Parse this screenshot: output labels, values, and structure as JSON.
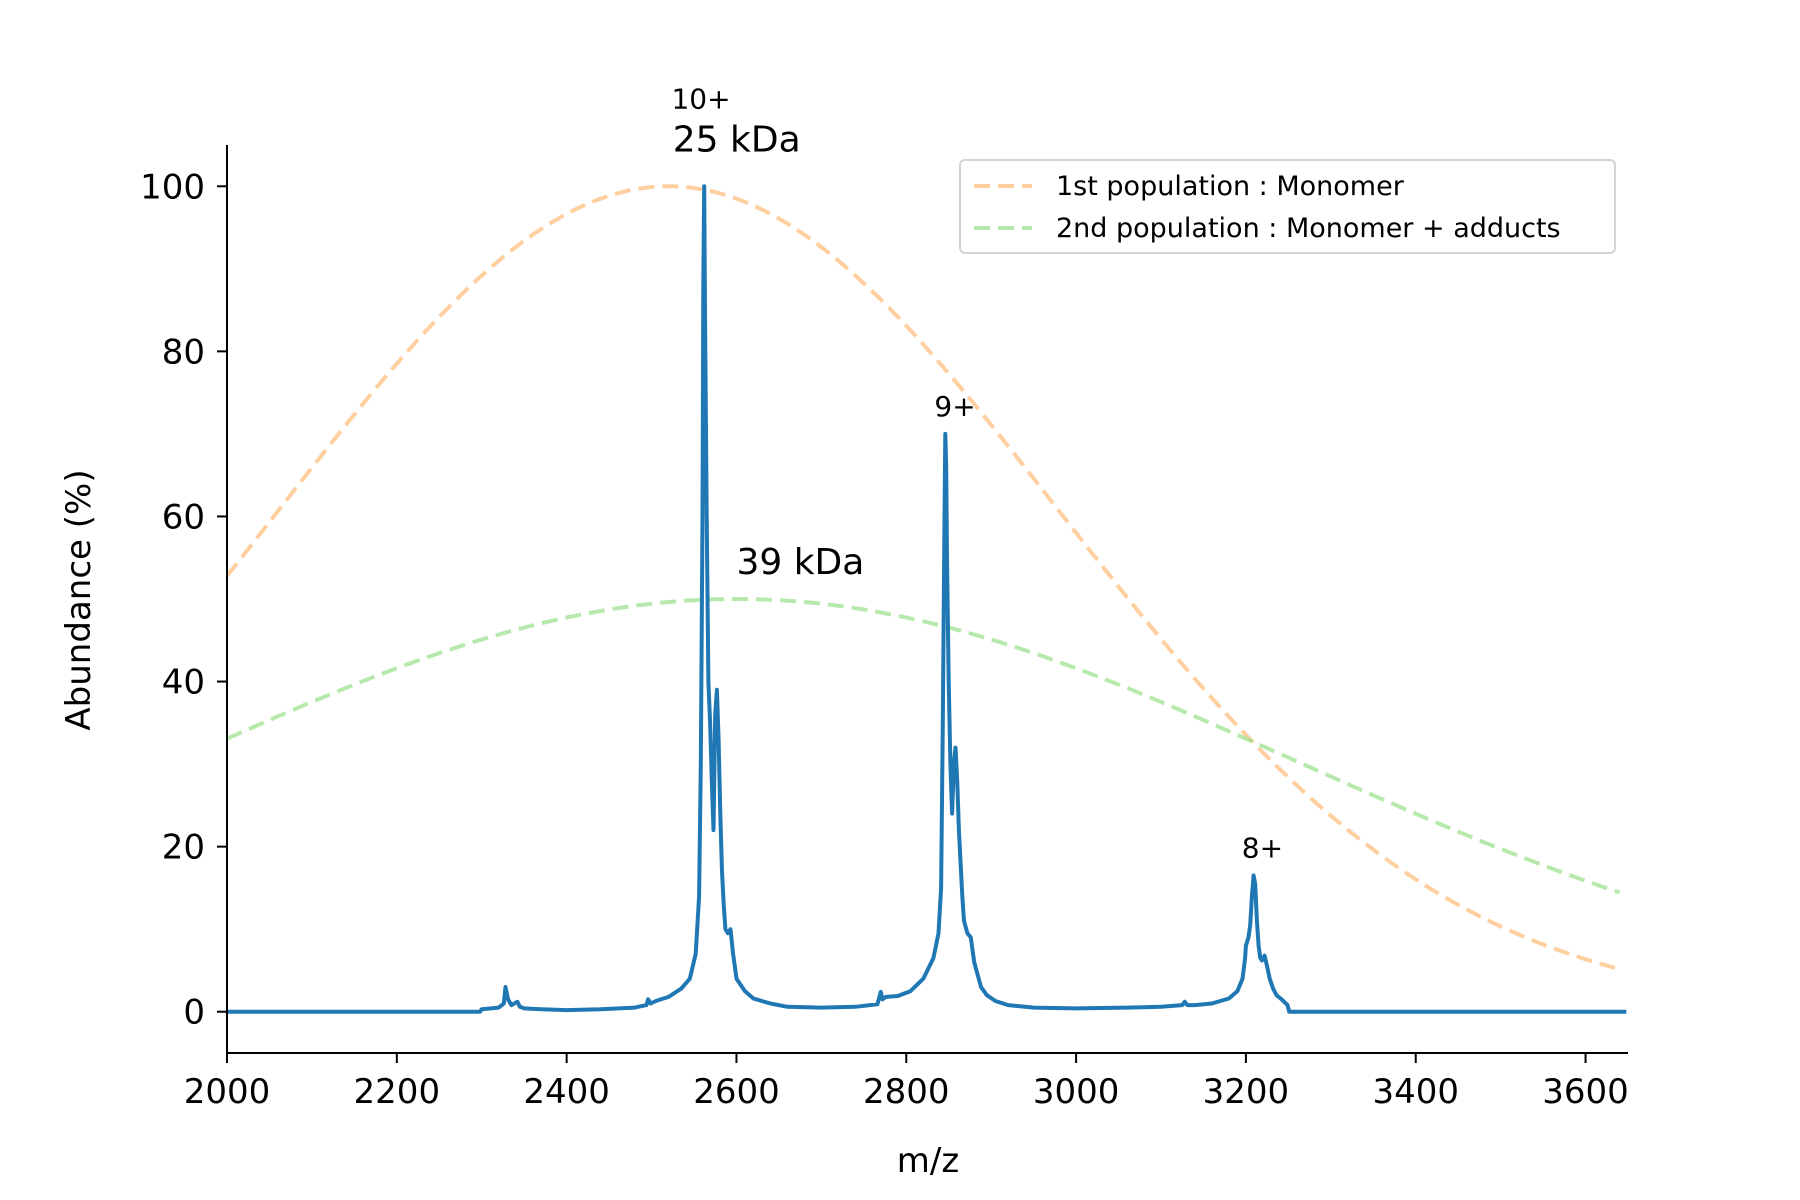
{
  "chart_data": {
    "type": "line",
    "xlabel": "m/z",
    "ylabel": "Abundance (%)",
    "xlim": [
      2000,
      3650
    ],
    "ylim": [
      -5,
      105
    ],
    "x_ticks": [
      2000,
      2200,
      2400,
      2600,
      2800,
      3000,
      3200,
      3400,
      3600
    ],
    "y_ticks": [
      0,
      20,
      40,
      60,
      80,
      100
    ],
    "grid": false,
    "legend_position": "top-right",
    "legend": [
      {
        "label": "1st population : Monomer",
        "color": "#ffbb78",
        "style": "dashed"
      },
      {
        "label": "2nd population : Monomer + adducts",
        "color": "#98df8a",
        "style": "dashed"
      }
    ],
    "annotations": {
      "charge_states": [
        {
          "text": "10+",
          "x": 2563,
          "y": 100
        },
        {
          "text": "9+",
          "x": 2848,
          "y": 70
        },
        {
          "text": "8+",
          "x": 3210,
          "y": 16.5
        }
      ],
      "masses": [
        {
          "text": "25 kDa",
          "x": 2525,
          "y": 100
        },
        {
          "text": "39 kDa",
          "x": 2600,
          "y": 50
        }
      ]
    },
    "series": [
      {
        "name": "1st population : Monomer",
        "kind": "gaussian",
        "center": 2520,
        "amplitude": 100,
        "sigma": 460,
        "color": "#ffbb78",
        "dashed": true,
        "x_range": [
          2000,
          3640
        ]
      },
      {
        "name": "2nd population : Monomer + adducts",
        "kind": "gaussian",
        "center": 2600,
        "amplitude": 50,
        "sigma": 660,
        "color": "#98df8a",
        "dashed": true,
        "x_range": [
          2000,
          3640
        ]
      },
      {
        "kind": "spectrum",
        "color": "#1f77b4",
        "x": [
          2000,
          2298,
          2300,
          2320,
          2326,
          2328,
          2331,
          2335,
          2342,
          2345,
          2350,
          2370,
          2400,
          2440,
          2480,
          2494,
          2496,
          2499,
          2505,
          2520,
          2535,
          2545,
          2552,
          2556,
          2558,
          2560,
          2561,
          2562,
          2563,
          2565,
          2567,
          2569,
          2571,
          2573,
          2575,
          2577,
          2579,
          2581,
          2583,
          2585,
          2587,
          2590,
          2593,
          2596,
          2600,
          2610,
          2620,
          2640,
          2660,
          2700,
          2740,
          2766,
          2770,
          2772,
          2776,
          2790,
          2805,
          2820,
          2832,
          2838,
          2841,
          2843,
          2845,
          2846,
          2847,
          2848,
          2850,
          2852,
          2854,
          2856,
          2858,
          2860,
          2862,
          2864,
          2866,
          2868,
          2872,
          2876,
          2880,
          2884,
          2888,
          2895,
          2905,
          2920,
          2950,
          3000,
          3060,
          3100,
          3125,
          3128,
          3131,
          3140,
          3160,
          3180,
          3190,
          3196,
          3199,
          3200,
          3203,
          3205,
          3207,
          3209,
          3211,
          3213,
          3215,
          3217,
          3219,
          3222,
          3225,
          3228,
          3232,
          3236,
          3242,
          3249,
          3251,
          3252,
          3254,
          3300,
          3400,
          3500,
          3600,
          3648
        ],
        "y": [
          0,
          0,
          0.3,
          0.5,
          1.0,
          3.0,
          1.5,
          0.8,
          1.2,
          0.6,
          0.4,
          0.3,
          0.2,
          0.3,
          0.5,
          0.8,
          1.5,
          1.0,
          1.3,
          1.8,
          2.8,
          4.0,
          7.0,
          14.0,
          30.0,
          60.0,
          88.0,
          100.0,
          85.0,
          60.0,
          40.0,
          35.0,
          28.0,
          22.0,
          36.0,
          39.0,
          33.0,
          24.0,
          17.0,
          13.0,
          10.0,
          9.5,
          10.0,
          7.0,
          4.0,
          2.5,
          1.6,
          1.0,
          0.6,
          0.5,
          0.6,
          0.9,
          2.4,
          1.5,
          1.8,
          1.9,
          2.5,
          4.0,
          6.5,
          9.5,
          15.0,
          35.0,
          60.0,
          70.0,
          66.0,
          55.0,
          40.0,
          30.0,
          24.0,
          30.0,
          32.0,
          28.0,
          22.0,
          18.0,
          14.0,
          11.0,
          9.5,
          9.0,
          6.0,
          4.5,
          3.0,
          2.0,
          1.3,
          0.8,
          0.5,
          0.4,
          0.5,
          0.6,
          0.8,
          1.2,
          0.8,
          0.8,
          1.0,
          1.6,
          2.5,
          4.0,
          6.5,
          8.0,
          9.0,
          10.5,
          14.0,
          16.5,
          15.5,
          11.0,
          8.0,
          6.5,
          6.2,
          6.8,
          5.5,
          4.0,
          2.8,
          2.0,
          1.5,
          0.8,
          0,
          0,
          0,
          0,
          0,
          0,
          0,
          0
        ]
      }
    ]
  }
}
